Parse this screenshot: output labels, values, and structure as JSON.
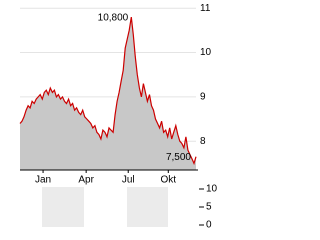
{
  "chart_data": [
    {
      "type": "area",
      "values": [
        8.4,
        8.45,
        8.55,
        8.7,
        8.8,
        8.75,
        8.9,
        8.85,
        8.95,
        9.0,
        9.05,
        8.95,
        9.1,
        9.15,
        9.05,
        9.2,
        9.1,
        9.15,
        9.0,
        9.05,
        8.95,
        9.0,
        8.9,
        8.85,
        8.95,
        8.8,
        8.85,
        8.7,
        8.75,
        8.65,
        8.6,
        8.7,
        8.55,
        8.5,
        8.45,
        8.4,
        8.3,
        8.35,
        8.2,
        8.15,
        8.05,
        8.25,
        8.2,
        8.1,
        8.3,
        8.25,
        8.2,
        8.6,
        8.9,
        9.1,
        9.35,
        9.6,
        10.1,
        10.3,
        10.5,
        10.8,
        10.4,
        9.9,
        9.5,
        9.2,
        9.0,
        9.3,
        9.1,
        8.9,
        9.05,
        8.8,
        8.7,
        8.5,
        8.4,
        8.3,
        8.45,
        8.2,
        8.25,
        8.1,
        8.3,
        8.05,
        8.2,
        8.35,
        8.15,
        8.0,
        7.95,
        7.85,
        8.1,
        7.8,
        7.7,
        7.6,
        7.5,
        7.65
      ],
      "value_labels": [
        null,
        null,
        null,
        null,
        null,
        null,
        null,
        null,
        null,
        null,
        null,
        null,
        null,
        null,
        null,
        null,
        null,
        null,
        null,
        null,
        null,
        null,
        null,
        null,
        null,
        null,
        null,
        null,
        null,
        null,
        null,
        null,
        null,
        null,
        null,
        null,
        null,
        null,
        null,
        null,
        null,
        null,
        null,
        null,
        null,
        null,
        null,
        null,
        null,
        null,
        null,
        null,
        null,
        null,
        null,
        "10,800",
        null,
        null,
        null,
        null,
        null,
        null,
        null,
        null,
        null,
        null,
        null,
        null,
        null,
        null,
        null,
        null,
        null,
        null,
        null,
        null,
        null,
        null,
        null,
        null,
        null,
        null,
        null,
        null,
        null,
        null,
        "7,500",
        null
      ],
      "color": "#cc0000",
      "fill": "#c8c8c8",
      "xticks": [
        {
          "value": 11.4,
          "label": "Jan"
        },
        {
          "value": 32.7,
          "label": "Apr"
        },
        {
          "value": 53.5,
          "label": "Jul"
        },
        {
          "value": 73.3,
          "label": "Okt"
        }
      ],
      "ylim": [
        7.35,
        11.05
      ],
      "yticks": [
        8,
        9,
        10,
        11
      ],
      "grid": true
    },
    {
      "type": "bar",
      "ylim": [
        0,
        10
      ],
      "yticks": [
        0,
        5,
        10
      ]
    }
  ]
}
